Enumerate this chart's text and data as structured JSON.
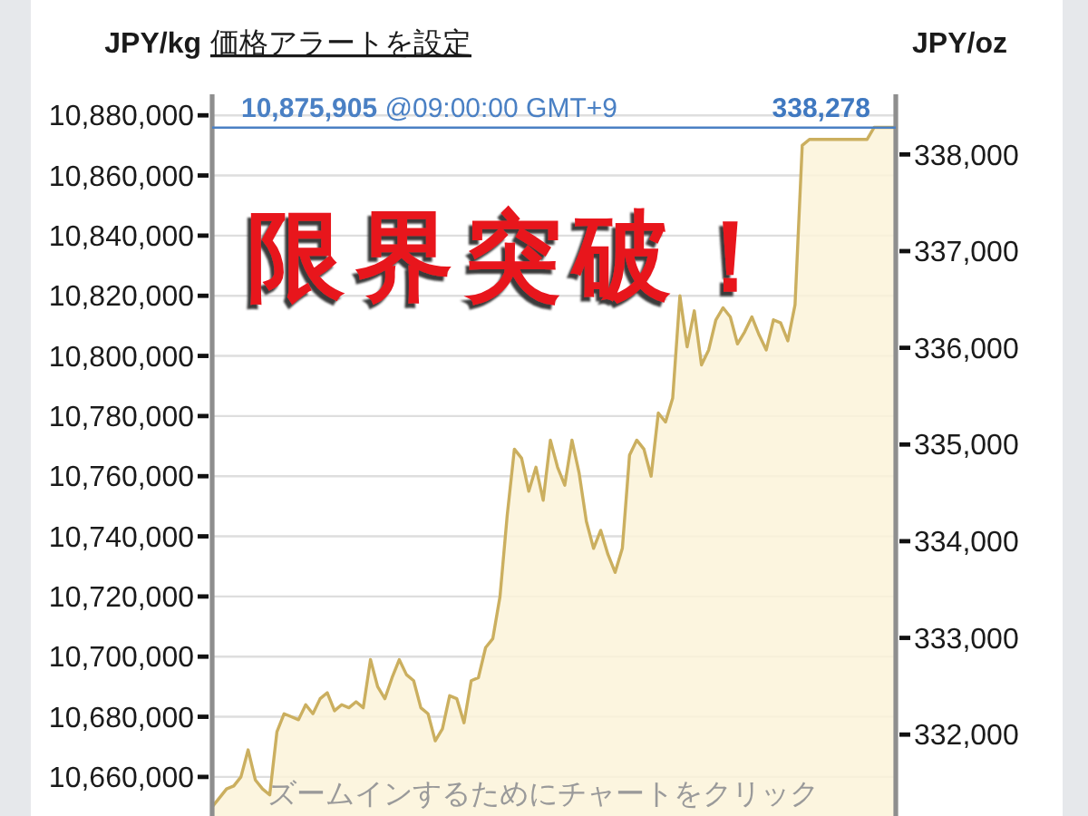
{
  "chart_data": {
    "type": "area",
    "ylabel": "JPY/kg",
    "y2label": "JPY/oz",
    "annotations": [
      "価格アラートを設定",
      "限界突破！",
      "ズームインするためにチャートをクリック",
      {
        "text": "338,278",
        "y": 10875905
      }
    ],
    "categories": [
      null,
      null,
      null,
      null,
      null,
      null,
      null,
      null,
      null,
      null,
      null,
      null,
      null,
      null,
      null,
      null,
      null,
      null,
      null,
      null,
      null,
      null,
      null,
      null,
      null,
      null,
      null,
      null,
      null,
      null,
      null,
      null,
      null,
      null,
      null,
      null,
      null,
      null,
      null,
      null,
      null,
      null,
      null,
      null,
      null,
      null,
      null,
      null,
      null,
      null,
      null,
      null,
      null,
      null,
      null,
      null,
      null,
      null,
      null,
      null,
      null,
      null,
      null,
      null,
      null,
      null,
      null,
      null,
      null,
      null,
      null,
      null,
      null,
      null,
      null,
      null,
      null,
      null,
      null,
      null,
      null,
      null,
      null,
      null,
      null,
      null,
      null,
      null,
      null,
      null,
      null,
      null,
      null,
      null,
      null,
      null
    ],
    "series": [
      {
        "color": "#cbaf5f",
        "values": [
          10650000,
          10653000,
          10656000,
          10657000,
          10660000,
          10669000,
          10659000,
          10656000,
          10654000,
          10675000,
          10681000,
          10680000,
          10679000,
          10684000,
          10681000,
          10686000,
          10688000,
          10682000,
          10684000,
          10683000,
          10685000,
          10683000,
          10699000,
          10690000,
          10686000,
          10693000,
          10699000,
          10694000,
          10692000,
          10683000,
          10681000,
          10672000,
          10676000,
          10687000,
          10686000,
          10678000,
          10692000,
          10693000,
          10703000,
          10706000,
          10720000,
          10747000,
          10769000,
          10766000,
          10755000,
          10763000,
          10752000,
          10772000,
          10763000,
          10757000,
          10772000,
          10761000,
          10745000,
          10736000,
          10742000,
          10734000,
          10728000,
          10736000,
          10767000,
          10772000,
          10769000,
          10760000,
          10781000,
          10778000,
          10786000,
          10820000,
          10803000,
          10815000,
          10797000,
          10802000,
          10812000,
          10816000,
          10813000,
          10804000,
          10808000,
          10813000,
          10807000,
          10802000,
          10812000,
          10811000,
          10805000,
          10817000,
          10870000,
          10872000,
          10872000,
          10872000,
          10872000,
          10872000,
          10872000,
          10872000,
          10872000,
          10872000,
          10876000,
          10876000,
          10876000,
          10876000
        ]
      }
    ],
    "ylim": [
      10647000,
      10887000
    ],
    "yticks": [
      {
        "value": 10660000,
        "label": "10,660,000"
      },
      {
        "value": 10680000,
        "label": "10,680,000"
      },
      {
        "value": 10700000,
        "label": "10,700,000"
      },
      {
        "value": 10720000,
        "label": "10,720,000"
      },
      {
        "value": 10740000,
        "label": "10,740,000"
      },
      {
        "value": 10760000,
        "label": "10,760,000"
      },
      {
        "value": 10780000,
        "label": "10,780,000"
      },
      {
        "value": 10800000,
        "label": "10,800,000"
      },
      {
        "value": 10820000,
        "label": "10,820,000"
      },
      {
        "value": 10840000,
        "label": "10,840,000"
      },
      {
        "value": 10860000,
        "label": "10,860,000"
      },
      {
        "value": 10880000,
        "label": "10,880,000"
      }
    ],
    "y2lim": [
      331158,
      338622
    ],
    "y2ticks": [
      {
        "value": 332000,
        "label": "332,000"
      },
      {
        "value": 333000,
        "label": "333,000"
      },
      {
        "value": 334000,
        "label": "334,000"
      },
      {
        "value": 335000,
        "label": "335,000"
      },
      {
        "value": 336000,
        "label": "336,000"
      },
      {
        "value": 337000,
        "label": "337,000"
      },
      {
        "value": 338000,
        "label": "338,000"
      }
    ],
    "ref_lines": [
      {
        "axis": "y",
        "value": 10875905,
        "label": "10,875,905 @09:00:00 GMT+9",
        "color": "#4a80c4"
      }
    ],
    "grid": "y",
    "tick_labels": "y"
  }
}
